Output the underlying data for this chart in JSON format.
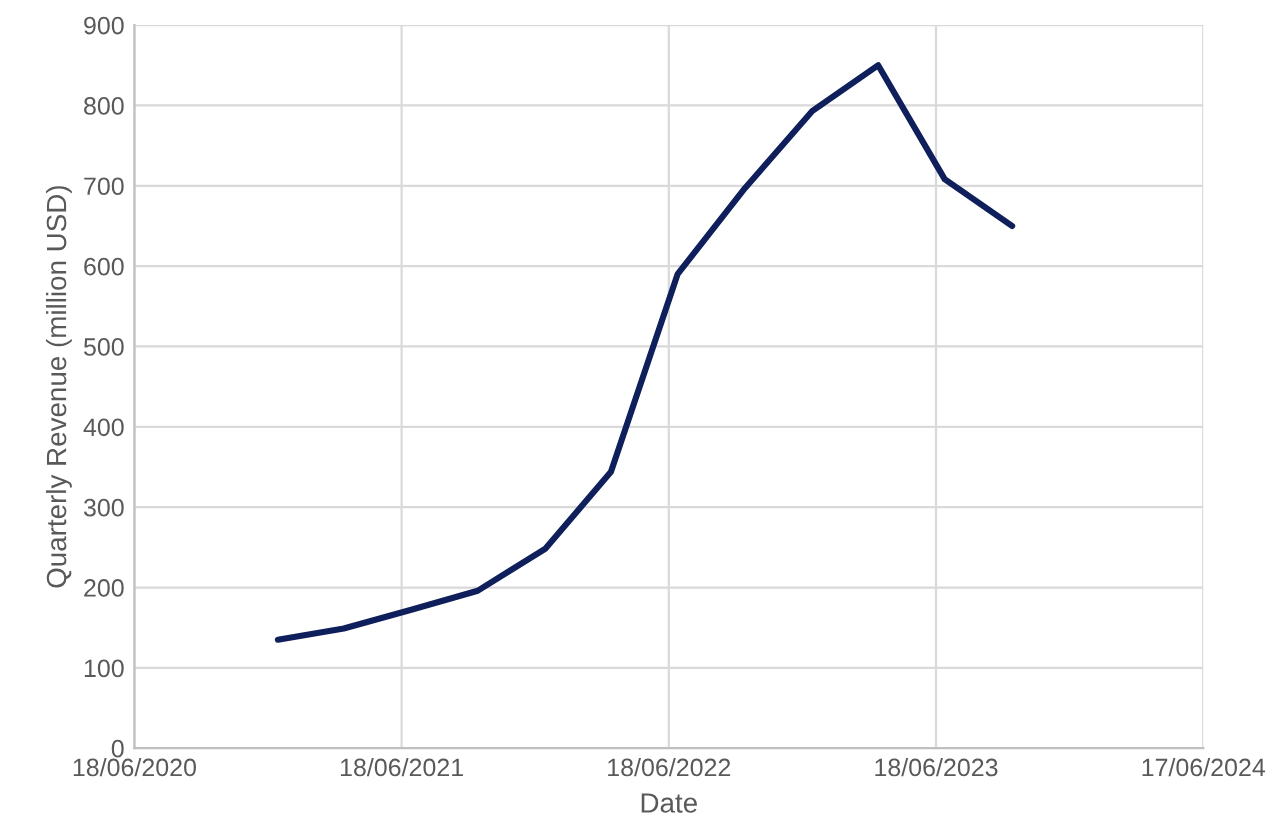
{
  "chart_data": {
    "type": "line",
    "xlabel": "Date",
    "ylabel": "Quarterly Revenue (million USD)",
    "x": [
      "2020-12-31",
      "2021-03-31",
      "2021-06-30",
      "2021-09-30",
      "2021-12-31",
      "2022-03-31",
      "2022-06-30",
      "2022-09-30",
      "2022-12-31",
      "2023-03-31",
      "2023-06-30",
      "2023-09-30"
    ],
    "series": [
      {
        "color": "#0e1f5b",
        "values": [
          135,
          149,
          172,
          196,
          248,
          344,
          590,
          697,
          793,
          850,
          708,
          650
        ]
      }
    ],
    "xlim": [
      "2020-06-18",
      "2024-06-17"
    ],
    "xticks": [
      {
        "value": "2020-06-18",
        "label": "18/06/2020"
      },
      {
        "value": "2021-06-18",
        "label": "18/06/2021"
      },
      {
        "value": "2022-06-18",
        "label": "18/06/2022"
      },
      {
        "value": "2023-06-18",
        "label": "18/06/2023"
      },
      {
        "value": "2024-06-17",
        "label": "17/06/2024"
      }
    ],
    "ylim": [
      0,
      900
    ],
    "yticks": [
      0,
      100,
      200,
      300,
      400,
      500,
      600,
      700,
      800,
      900
    ],
    "grid": true,
    "marker": "none",
    "line_style": "solid"
  }
}
